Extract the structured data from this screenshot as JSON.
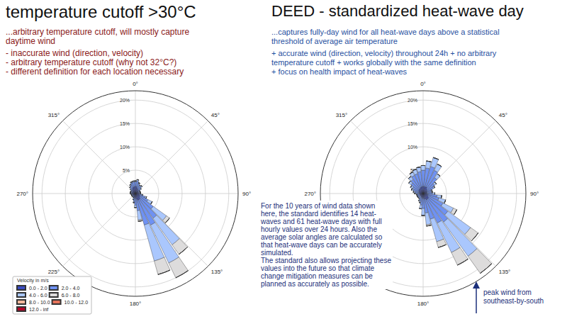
{
  "chart_data": [
    {
      "type": "windrose",
      "title": "temperature cutoff >30°C",
      "subtitle": "...arbitrary temperature cutoff, will mostly capture\ndaytime wind",
      "annotations": [
        "- inaccurate wind (direction, velocity)",
        "- arbitrary temperature cutoff (why not 32°C?)",
        "- different definition for each location necessary"
      ],
      "x": [
        0,
        10,
        20,
        30,
        40,
        50,
        60,
        70,
        80,
        90,
        100,
        110,
        120,
        130,
        140,
        150,
        160,
        170,
        180,
        190,
        200,
        210,
        220,
        230,
        240,
        250,
        260,
        270,
        280,
        290,
        300,
        310,
        320,
        330,
        340,
        350
      ],
      "xlim": [
        0,
        360
      ],
      "xticks": [
        {
          "value": 0,
          "label": "0°"
        },
        {
          "value": 45,
          "label": "45°"
        },
        {
          "value": 90,
          "label": "90°"
        },
        {
          "value": 135,
          "label": "135°"
        },
        {
          "value": 180,
          "label": "180°"
        },
        {
          "value": 225,
          "label": "225°"
        },
        {
          "value": 270,
          "label": "270°"
        },
        {
          "value": 315,
          "label": "315°"
        }
      ],
      "ylim": [
        0,
        22
      ],
      "yticks": [
        {
          "value": 5,
          "label": "5%"
        },
        {
          "value": 10,
          "label": "10%"
        },
        {
          "value": 15,
          "label": "15%"
        },
        {
          "value": 20,
          "label": "20%"
        }
      ],
      "grid": true,
      "stacked": true,
      "legend": "lower left",
      "legend_title": "Velocity in m/s",
      "series": [
        {
          "name": "0.0 - 2.0",
          "color": "#3b4cc0",
          "values": [
            1.5,
            1.5,
            1.2,
            1,
            1,
            0.8,
            0.7,
            0.7,
            0.7,
            0.7,
            0.8,
            1,
            1,
            1.2,
            1.5,
            1.5,
            1.5,
            1.2,
            1,
            1,
            0.8,
            0.6,
            0.6,
            0.6,
            0.6,
            0.6,
            0.6,
            0.7,
            0.7,
            0.7,
            0.7,
            0.8,
            1,
            1.2,
            1.4,
            1.5
          ]
        },
        {
          "name": "2.0 - 4.0",
          "color": "#6f92f3",
          "values": [
            1,
            1.2,
            1,
            0.8,
            0.8,
            0.6,
            0.4,
            0.4,
            0.4,
            0.4,
            0.6,
            1.2,
            2,
            3.5,
            5,
            6,
            5.5,
            2.5,
            1.5,
            0.8,
            0.5,
            0.3,
            0.3,
            0.3,
            0.3,
            0.3,
            0.3,
            0.4,
            0.4,
            0.4,
            0.4,
            0.5,
            0.7,
            0.8,
            1,
            1
          ]
        },
        {
          "name": "4.0 - 6.0",
          "color": "#aac7fd",
          "values": [
            0.2,
            0.3,
            0.2,
            0.2,
            0.3,
            0.2,
            0,
            0,
            0,
            0,
            0.2,
            0.3,
            1,
            3.5,
            7,
            9,
            8,
            2,
            0.5,
            0.2,
            0.1,
            0,
            0,
            0,
            0,
            0,
            0,
            0,
            0,
            0,
            0,
            0.1,
            0.1,
            0.2,
            0.2,
            0.2
          ]
        },
        {
          "name": "6.0 - 8.0",
          "color": "#dddcdc",
          "values": [
            0,
            0,
            0,
            0,
            0,
            0,
            0,
            0,
            0,
            0,
            0,
            0,
            0,
            0.8,
            2.5,
            3.5,
            3,
            0.3,
            0,
            0,
            0,
            0,
            0,
            0,
            0,
            0,
            0,
            0,
            0,
            0,
            0,
            0,
            0,
            0,
            0,
            0
          ]
        },
        {
          "name": "8.0 - 10.0",
          "color": "#f7b89c",
          "values": [
            0,
            0,
            0,
            0,
            0,
            0,
            0,
            0,
            0,
            0,
            0,
            0,
            0,
            0,
            0,
            0,
            0,
            0,
            0,
            0,
            0,
            0,
            0,
            0,
            0,
            0,
            0,
            0,
            0,
            0,
            0,
            0,
            0,
            0,
            0,
            0
          ]
        },
        {
          "name": "10.0 - 12.0",
          "color": "#e7745b",
          "values": [
            0,
            0,
            0,
            0,
            0,
            0,
            0,
            0,
            0,
            0,
            0,
            0,
            0,
            0,
            0,
            0,
            0,
            0,
            0,
            0,
            0,
            0,
            0,
            0,
            0,
            0,
            0,
            0,
            0,
            0,
            0,
            0,
            0,
            0,
            0,
            0
          ]
        },
        {
          "name": "12.0 - inf",
          "color": "#b40426",
          "values": [
            0,
            0,
            0,
            0,
            0,
            0,
            0,
            0,
            0,
            0,
            0,
            0,
            0,
            0,
            0,
            0,
            0,
            0,
            0,
            0,
            0,
            0,
            0,
            0,
            0,
            0,
            0,
            0,
            0,
            0,
            0,
            0,
            0,
            0,
            0,
            0
          ]
        }
      ]
    },
    {
      "type": "windrose",
      "title": "DEED - standardized heat-wave day",
      "subtitle": "...captures fully-day wind for all heat-wave days above a statistical\nthreshold of average air temperature",
      "annotations": [
        "+ accurate wind (direction, velocity) throughout 24h + no arbitrary\ntemperature cutoff + works globally with the same definition\n+ focus on health impact of heat-waves",
        "For the 10 years of wind data shown\nhere, the standard identifies 14 heat-\nwaves and 61 heat-wave days with full\nhourly values over 24 hours. Also the\naverage solar angles are calculated so\nthat heat-wave days can be accurately\nsimulated.\nThe standard also allows projecting these\nvalues into the future so that climate\nchange mitigation measures can be\nplanned as accurately as possible.",
        "peak wind from\nsoutheast-by-south"
      ],
      "x": [
        0,
        10,
        20,
        30,
        40,
        50,
        60,
        70,
        80,
        90,
        100,
        110,
        120,
        130,
        140,
        150,
        160,
        170,
        180,
        190,
        200,
        210,
        220,
        230,
        240,
        250,
        260,
        270,
        280,
        290,
        300,
        310,
        320,
        330,
        340,
        350
      ],
      "xlim": [
        0,
        360
      ],
      "xticks": [
        {
          "value": 0,
          "label": "0°"
        },
        {
          "value": 45,
          "label": "45°"
        },
        {
          "value": 90,
          "label": "90°"
        },
        {
          "value": 135,
          "label": "135°"
        },
        {
          "value": 180,
          "label": "180°"
        },
        {
          "value": 270,
          "label": "270°"
        },
        {
          "value": 315,
          "label": "315°"
        }
      ],
      "ylim": [
        0,
        22
      ],
      "yticks": [
        {
          "value": 5,
          "label": "5%"
        },
        {
          "value": 10,
          "label": "10%"
        },
        {
          "value": 15,
          "label": "15%"
        },
        {
          "value": 20,
          "label": "20%"
        }
      ],
      "grid": true,
      "stacked": true,
      "series": [
        {
          "name": "0.0 - 2.0",
          "color": "#3b4cc0",
          "values": [
            1.5,
            1.5,
            1.5,
            1.5,
            1.2,
            1,
            1,
            0.8,
            0.8,
            0.8,
            1,
            1,
            1.2,
            1.5,
            1.5,
            1.5,
            1.2,
            1.2,
            1,
            1,
            0.8,
            0.8,
            0.7,
            0.7,
            0.7,
            0.7,
            0.7,
            0.8,
            0.8,
            1,
            1,
            1.2,
            1.2,
            1.3,
            1.4,
            1.5
          ]
        },
        {
          "name": "2.0 - 4.0",
          "color": "#6f92f3",
          "values": [
            3.5,
            4,
            4.5,
            4,
            3,
            2,
            1.5,
            1,
            1,
            1.2,
            2,
            2.5,
            3.5,
            5,
            6,
            5.5,
            4.5,
            3,
            2.2,
            1.5,
            1,
            0.8,
            0.6,
            0.6,
            0.6,
            0.6,
            0.6,
            0.8,
            1,
            1.2,
            1.5,
            2,
            2.5,
            3,
            3,
            3.2
          ]
        },
        {
          "name": "4.0 - 6.0",
          "color": "#aac7fd",
          "values": [
            1,
            1.5,
            2,
            1.5,
            1,
            0.5,
            0.3,
            0.2,
            0.2,
            0.5,
            1,
            1.5,
            2.5,
            6,
            9,
            7,
            5,
            2.5,
            1.5,
            0.8,
            0.3,
            0.2,
            0.1,
            0.1,
            0.1,
            0.1,
            0.1,
            0.2,
            0.3,
            0.4,
            0.5,
            0.6,
            0.8,
            0.8,
            1,
            1
          ]
        },
        {
          "name": "6.0 - 8.0",
          "color": "#dddcdc",
          "values": [
            0,
            0,
            0,
            0,
            0,
            0,
            0,
            0,
            0,
            0,
            0,
            0,
            0.8,
            2,
            4.5,
            3,
            1.3,
            0.3,
            0,
            0,
            0,
            0,
            0,
            0,
            0,
            0,
            0,
            0,
            0,
            0,
            0,
            0,
            0,
            0,
            0,
            0
          ]
        },
        {
          "name": "8.0 - 10.0",
          "color": "#f7b89c",
          "values": [
            0,
            0,
            0,
            0,
            0,
            0,
            0,
            0,
            0,
            0,
            0,
            0,
            0,
            0,
            0,
            0,
            0,
            0,
            0,
            0,
            0,
            0,
            0,
            0,
            0,
            0,
            0,
            0,
            0,
            0,
            0,
            0,
            0,
            0,
            0,
            0
          ]
        },
        {
          "name": "10.0 - 12.0",
          "color": "#e7745b",
          "values": [
            0,
            0,
            0,
            0,
            0,
            0,
            0,
            0,
            0,
            0,
            0,
            0,
            0,
            0,
            0,
            0,
            0,
            0,
            0,
            0,
            0,
            0,
            0,
            0,
            0,
            0,
            0,
            0,
            0,
            0,
            0,
            0,
            0,
            0,
            0,
            0
          ]
        },
        {
          "name": "12.0 - inf",
          "color": "#b40426",
          "values": [
            0,
            0,
            0,
            0,
            0,
            0,
            0,
            0,
            0,
            0,
            0,
            0,
            0,
            0,
            0,
            0,
            0,
            0,
            0,
            0,
            0,
            0,
            0,
            0,
            0,
            0,
            0,
            0,
            0,
            0,
            0,
            0,
            0,
            0,
            0,
            0
          ]
        }
      ]
    }
  ]
}
